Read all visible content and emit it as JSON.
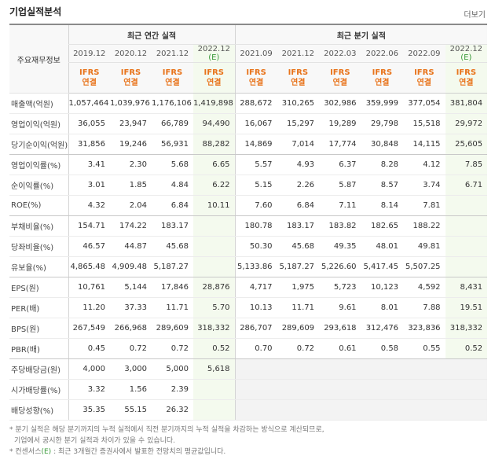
{
  "header": {
    "title": "기업실적분석",
    "more": "더보기"
  },
  "table": {
    "corner": "주요재무정보",
    "estimate_mark": "(E)",
    "basis": [
      "IFRS",
      "연결"
    ],
    "annual": {
      "title": "최근 연간 실적",
      "periods": [
        "2019.12",
        "2020.12",
        "2021.12",
        "2022.12"
      ]
    },
    "quarterly": {
      "title": "최근 분기 실적",
      "periods": [
        "2021.09",
        "2021.12",
        "2022.03",
        "2022.06",
        "2022.09",
        "2022.12"
      ]
    },
    "rows": [
      {
        "label": "매출액(억원)",
        "values": [
          "1,057,464",
          "1,039,976",
          "1,176,106",
          "1,419,898",
          "288,672",
          "310,265",
          "302,986",
          "359,999",
          "377,054",
          "381,804"
        ]
      },
      {
        "label": "영업이익(억원)",
        "values": [
          "36,055",
          "23,947",
          "66,789",
          "94,490",
          "16,067",
          "15,297",
          "19,289",
          "29,798",
          "15,518",
          "29,972"
        ]
      },
      {
        "label": "당기순이익(억원)",
        "values": [
          "31,856",
          "19,246",
          "56,931",
          "88,282",
          "14,869",
          "7,014",
          "17,774",
          "30,848",
          "14,115",
          "25,605"
        ]
      },
      {
        "label": "영업이익률(%)",
        "values": [
          "3.41",
          "2.30",
          "5.68",
          "6.65",
          "5.57",
          "4.93",
          "6.37",
          "8.28",
          "4.12",
          "7.85"
        ]
      },
      {
        "label": "순이익률(%)",
        "values": [
          "3.01",
          "1.85",
          "4.84",
          "6.22",
          "5.15",
          "2.26",
          "5.87",
          "8.57",
          "3.74",
          "6.71"
        ]
      },
      {
        "label": "ROE(%)",
        "values": [
          "4.32",
          "2.04",
          "6.84",
          "10.11",
          "7.60",
          "6.84",
          "7.11",
          "8.14",
          "7.81",
          null
        ]
      },
      {
        "label": "부채비율(%)",
        "values": [
          "154.71",
          "174.22",
          "183.17",
          null,
          "180.78",
          "183.17",
          "183.82",
          "182.65",
          "188.22",
          null
        ]
      },
      {
        "label": "당좌비율(%)",
        "values": [
          "46.57",
          "44.87",
          "45.68",
          null,
          "50.30",
          "45.68",
          "49.35",
          "48.01",
          "49.81",
          null
        ]
      },
      {
        "label": "유보율(%)",
        "values": [
          "4,865.48",
          "4,909.48",
          "5,187.27",
          null,
          "5,133.86",
          "5,187.27",
          "5,226.60",
          "5,417.45",
          "5,507.25",
          null
        ]
      },
      {
        "label": "EPS(원)",
        "values": [
          "10,761",
          "5,144",
          "17,846",
          "28,876",
          "4,717",
          "1,975",
          "5,723",
          "10,123",
          "4,592",
          "8,431"
        ]
      },
      {
        "label": "PER(배)",
        "values": [
          "11.20",
          "37.33",
          "11.71",
          "5.70",
          "10.13",
          "11.71",
          "9.61",
          "8.01",
          "7.88",
          "19.51"
        ]
      },
      {
        "label": "BPS(원)",
        "values": [
          "267,549",
          "266,968",
          "289,609",
          "318,332",
          "286,707",
          "289,609",
          "293,618",
          "312,476",
          "323,836",
          "318,332"
        ]
      },
      {
        "label": "PBR(배)",
        "values": [
          "0.45",
          "0.72",
          "0.72",
          "0.52",
          "0.70",
          "0.72",
          "0.61",
          "0.58",
          "0.55",
          "0.52"
        ]
      },
      {
        "label": "주당배당금(원)",
        "values": [
          "4,000",
          "3,000",
          "5,000",
          "5,618",
          null,
          null,
          null,
          null,
          null,
          null
        ]
      },
      {
        "label": "시가배당률(%)",
        "values": [
          "3.32",
          "1.56",
          "2.39",
          null,
          null,
          null,
          null,
          null,
          null,
          null
        ]
      },
      {
        "label": "배당성향(%)",
        "values": [
          "35.35",
          "55.15",
          "26.32",
          null,
          null,
          null,
          null,
          null,
          null,
          null
        ]
      }
    ]
  },
  "notes": {
    "line1": "* 분기 실적은 해당 분기까지의 누적 실적에서 직전 분기까지의 누적 실적을 차감하는 방식으로 계산되므로,",
    "line2": "기업에서 공시한 분기 실적과 차이가 있을 수 있습니다.",
    "line3_prefix": "* 컨센서스",
    "line3_mark": "(E)",
    "line3_suffix": " : 최근 3개월간 증권사에서 발표한 전망치의 평균값입니다."
  }
}
